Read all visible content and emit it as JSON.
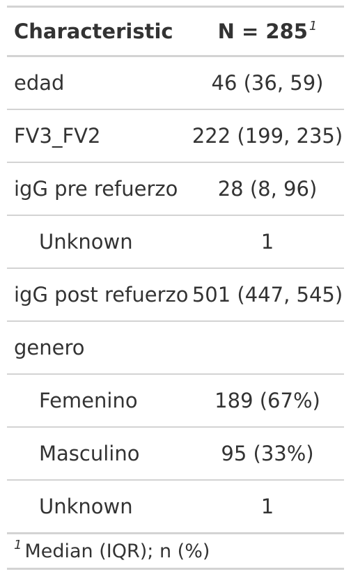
{
  "table": {
    "header": {
      "characteristic": "Characteristic",
      "n_label": "N = 285",
      "n_marker": "1"
    },
    "rows": [
      {
        "label": "edad",
        "value": "46 (36, 59)",
        "indent": false
      },
      {
        "label": "FV3_FV2",
        "value": "222 (199, 235)",
        "indent": false
      },
      {
        "label": "igG pre refuerzo",
        "value": "28 (8, 96)",
        "indent": false
      },
      {
        "label": "Unknown",
        "value": "1",
        "indent": true
      },
      {
        "label": "igG post refuerzo",
        "value": "501 (447, 545)",
        "indent": false
      },
      {
        "label": "genero",
        "value": "",
        "indent": false
      },
      {
        "label": "Femenino",
        "value": "189 (67%)",
        "indent": true
      },
      {
        "label": "Masculino",
        "value": "95 (33%)",
        "indent": true
      },
      {
        "label": "Unknown",
        "value": "1",
        "indent": true
      }
    ],
    "footnote": {
      "marker": "1",
      "text": "Median (IQR); n (%)"
    }
  }
}
